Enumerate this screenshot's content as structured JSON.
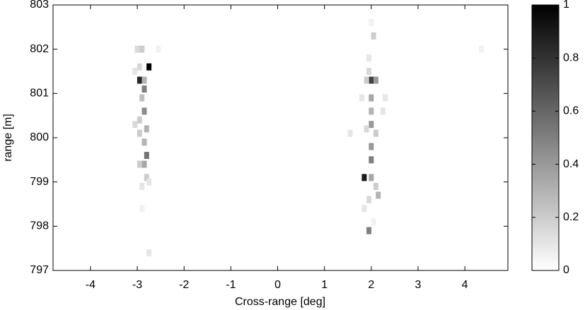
{
  "chart_data": {
    "type": "heatmap",
    "xlabel": "Cross-range [deg]",
    "ylabel": "range [m]",
    "xlim": [
      -4.8,
      4.92
    ],
    "xticks": [
      -4,
      -3,
      -2,
      -1,
      0,
      1,
      2,
      3,
      4
    ],
    "ylim": [
      797,
      803
    ],
    "yticks": [
      797,
      798,
      799,
      800,
      801,
      802,
      803
    ],
    "clim": [
      0,
      1
    ],
    "cticks": [
      0,
      0.2,
      0.4,
      0.6,
      0.8,
      1
    ],
    "colormap": [
      "#ffffff",
      "#000000"
    ],
    "x": [
      -2.75,
      -2.95,
      -2.85,
      -2.85,
      -3.0,
      -2.9,
      -2.55,
      -3.05,
      -2.95,
      -2.9,
      -2.85,
      -2.95,
      -3.05,
      -2.8,
      -2.95,
      -2.85,
      -2.8,
      -2.85,
      -2.95,
      -2.8,
      -2.9,
      -2.75,
      -2.9,
      -2.75,
      2.0,
      2.05,
      1.95,
      1.95,
      2.0,
      2.1,
      1.9,
      1.8,
      2.0,
      2.3,
      2.0,
      2.25,
      2.0,
      1.9,
      2.1,
      1.55,
      2.0,
      2.0,
      1.85,
      2.0,
      2.1,
      2.15,
      1.95,
      1.85,
      2.05,
      1.95,
      4.35
    ],
    "y": [
      801.6,
      801.3,
      801.1,
      801.3,
      802.0,
      802.0,
      802.0,
      801.5,
      801.6,
      800.9,
      800.6,
      800.4,
      800.3,
      800.2,
      800.1,
      799.9,
      799.6,
      799.4,
      799.4,
      799.1,
      798.9,
      799.0,
      798.4,
      797.4,
      802.6,
      802.3,
      801.8,
      801.5,
      801.3,
      801.3,
      801.3,
      800.9,
      800.9,
      800.9,
      800.6,
      800.6,
      800.3,
      800.2,
      800.1,
      800.1,
      799.8,
      799.5,
      799.1,
      799.1,
      798.9,
      798.7,
      798.6,
      798.4,
      798.1,
      797.9,
      802.0
    ],
    "values": [
      1.0,
      0.85,
      0.5,
      0.3,
      0.15,
      0.2,
      0.05,
      0.1,
      0.15,
      0.25,
      0.45,
      0.2,
      0.15,
      0.3,
      0.2,
      0.3,
      0.55,
      0.35,
      0.2,
      0.2,
      0.1,
      0.1,
      0.05,
      0.1,
      0.05,
      0.2,
      0.1,
      0.15,
      0.75,
      0.4,
      0.2,
      0.1,
      0.35,
      0.1,
      0.3,
      0.1,
      0.4,
      0.15,
      0.2,
      0.1,
      0.4,
      0.5,
      0.9,
      0.35,
      0.2,
      0.3,
      0.15,
      0.1,
      0.05,
      0.5,
      0.05
    ]
  }
}
